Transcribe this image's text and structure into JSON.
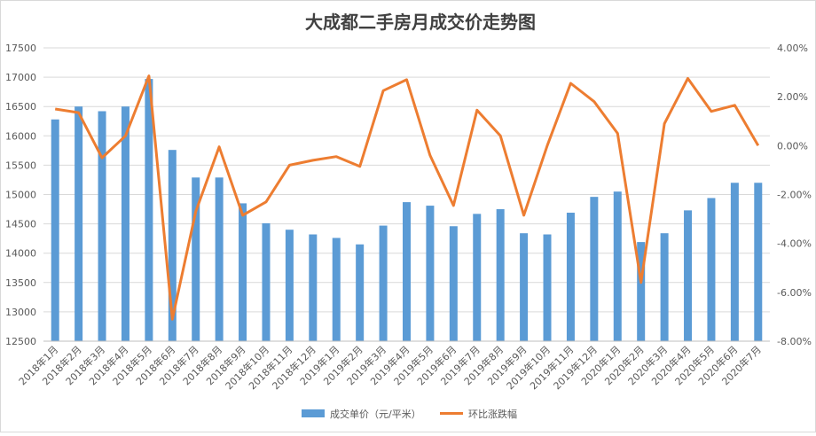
{
  "chart_data": {
    "type": "bar",
    "title": "大成都二手房月成交价走势图",
    "categories": [
      "2018年1月",
      "2018年2月",
      "2018年3月",
      "2018年4月",
      "2018年5月",
      "2018年6月",
      "2018年7月",
      "2018年8月",
      "2018年9月",
      "2018年10月",
      "2018年11月",
      "2018年12月",
      "2019年1月",
      "2019年2月",
      "2019年3月",
      "2019年4月",
      "2019年5月",
      "2019年6月",
      "2019年7月",
      "2019年8月",
      "2019年9月",
      "2019年10月",
      "2019年11月",
      "2019年12月",
      "2020年1月",
      "2020年2月",
      "2020年3月",
      "2020年4月",
      "2020年5月",
      "2020年6月",
      "2020年7月"
    ],
    "series": [
      {
        "name": "成交单价（元/平米）",
        "type": "bar",
        "axis": "left",
        "color": "#5B9BD5",
        "values": [
          16280,
          16500,
          16420,
          16500,
          16970,
          15760,
          15290,
          15290,
          14850,
          14510,
          14400,
          14320,
          14260,
          14150,
          14470,
          14870,
          14810,
          14460,
          14670,
          14750,
          14340,
          14320,
          14690,
          14960,
          15050,
          14190,
          14340,
          14730,
          14940,
          15200,
          15200
        ]
      },
      {
        "name": "环比涨跌幅",
        "type": "line",
        "axis": "right",
        "color": "#ED7D31",
        "values": [
          1.5,
          1.35,
          -0.5,
          0.4,
          2.85,
          -7.1,
          -2.7,
          -0.05,
          -2.85,
          -2.3,
          -0.8,
          -0.6,
          -0.45,
          -0.85,
          2.25,
          2.7,
          -0.4,
          -2.45,
          1.45,
          0.4,
          -2.85,
          0.0,
          2.55,
          1.8,
          0.5,
          -5.6,
          0.9,
          2.75,
          1.4,
          1.65,
          0.0
        ]
      }
    ],
    "y_left": {
      "min": 12500,
      "max": 17500,
      "ticks": [
        "12500",
        "13000",
        "13500",
        "14000",
        "14500",
        "15000",
        "15500",
        "16000",
        "16500",
        "17000",
        "17500"
      ]
    },
    "y_right": {
      "min": -8,
      "max": 4,
      "ticks": [
        "-8.00%",
        "-6.00%",
        "-4.00%",
        "-2.00%",
        "0.00%",
        "2.00%",
        "4.00%"
      ]
    },
    "grid": true,
    "legend_position": "bottom"
  }
}
